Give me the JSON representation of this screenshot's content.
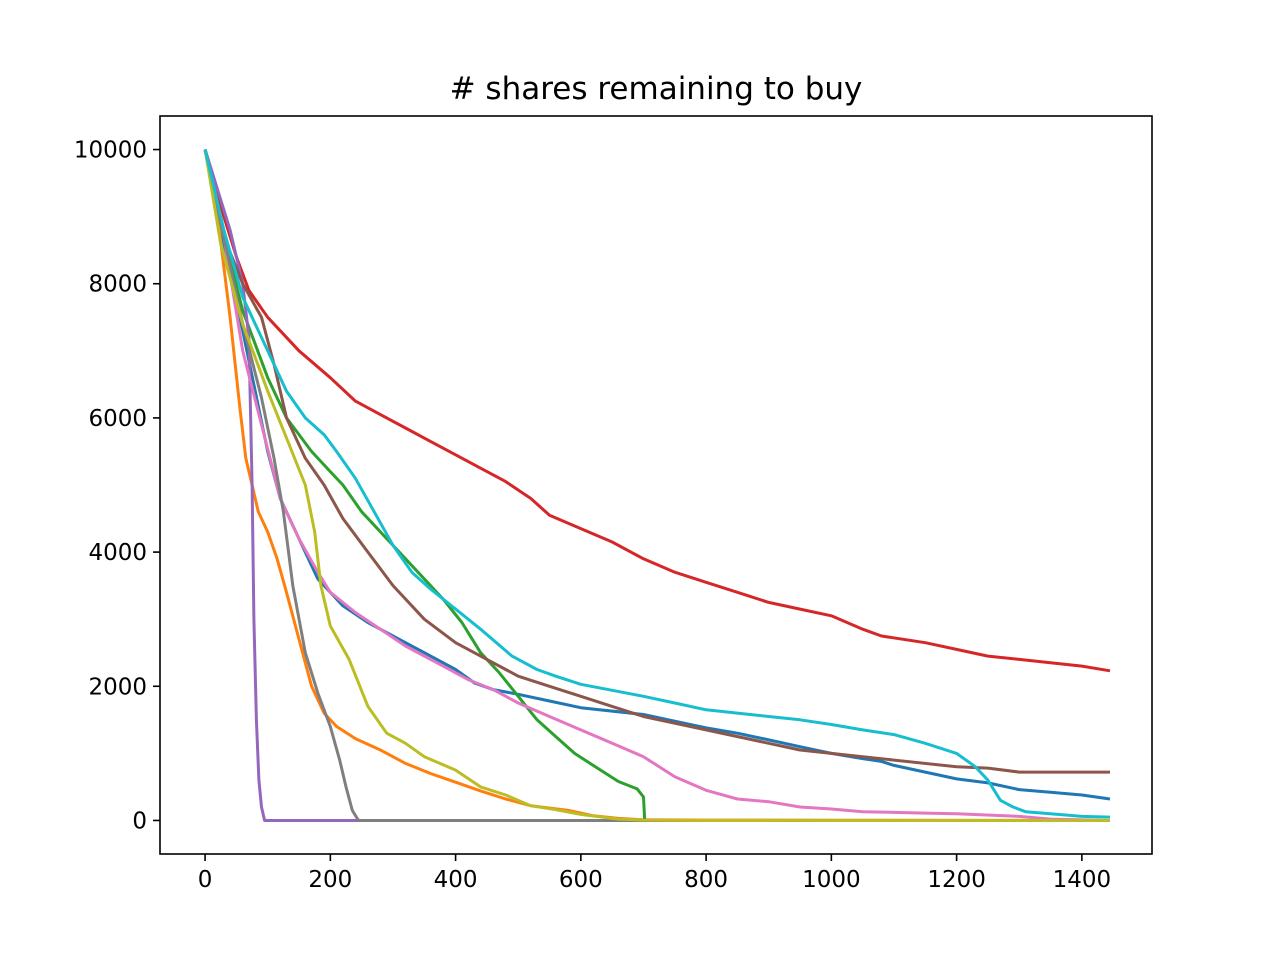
{
  "chart_data": {
    "type": "line",
    "title": "# shares remaining to buy",
    "xlabel": "",
    "ylabel": "",
    "xlim": [
      -72,
      1512
    ],
    "ylim": [
      -500,
      10500
    ],
    "xticks": [
      0,
      200,
      400,
      600,
      800,
      1000,
      1200,
      1400
    ],
    "yticks": [
      0,
      2000,
      4000,
      6000,
      8000,
      10000
    ],
    "grid": false,
    "legend": "none",
    "series": [
      {
        "color": "#1f77b4",
        "points": [
          [
            0,
            10000
          ],
          [
            30,
            8600
          ],
          [
            60,
            7300
          ],
          [
            80,
            6400
          ],
          [
            100,
            5500
          ],
          [
            120,
            4800
          ],
          [
            150,
            4200
          ],
          [
            180,
            3600
          ],
          [
            220,
            3200
          ],
          [
            260,
            2950
          ],
          [
            300,
            2750
          ],
          [
            350,
            2500
          ],
          [
            400,
            2250
          ],
          [
            430,
            2050
          ],
          [
            460,
            1950
          ],
          [
            500,
            1880
          ],
          [
            550,
            1780
          ],
          [
            600,
            1680
          ],
          [
            700,
            1580
          ],
          [
            750,
            1480
          ],
          [
            800,
            1380
          ],
          [
            850,
            1300
          ],
          [
            900,
            1200
          ],
          [
            950,
            1100
          ],
          [
            1000,
            1000
          ],
          [
            1050,
            920
          ],
          [
            1080,
            880
          ],
          [
            1100,
            820
          ],
          [
            1150,
            720
          ],
          [
            1200,
            620
          ],
          [
            1250,
            560
          ],
          [
            1300,
            460
          ],
          [
            1350,
            420
          ],
          [
            1400,
            380
          ],
          [
            1445,
            320
          ]
        ]
      },
      {
        "color": "#ff7f0e",
        "points": [
          [
            0,
            10000
          ],
          [
            20,
            9000
          ],
          [
            40,
            7500
          ],
          [
            55,
            6200
          ],
          [
            65,
            5400
          ],
          [
            75,
            5000
          ],
          [
            85,
            4600
          ],
          [
            100,
            4300
          ],
          [
            115,
            3900
          ],
          [
            130,
            3400
          ],
          [
            150,
            2700
          ],
          [
            170,
            2000
          ],
          [
            190,
            1600
          ],
          [
            210,
            1400
          ],
          [
            240,
            1220
          ],
          [
            280,
            1050
          ],
          [
            320,
            850
          ],
          [
            360,
            700
          ],
          [
            400,
            570
          ],
          [
            440,
            440
          ],
          [
            480,
            320
          ],
          [
            520,
            220
          ],
          [
            580,
            150
          ],
          [
            620,
            70
          ],
          [
            660,
            30
          ],
          [
            700,
            10
          ],
          [
            800,
            5
          ],
          [
            1445,
            0
          ]
        ]
      },
      {
        "color": "#2ca02c",
        "points": [
          [
            0,
            10000
          ],
          [
            30,
            8700
          ],
          [
            60,
            7600
          ],
          [
            100,
            6600
          ],
          [
            130,
            6000
          ],
          [
            170,
            5500
          ],
          [
            200,
            5200
          ],
          [
            220,
            5000
          ],
          [
            250,
            4600
          ],
          [
            300,
            4100
          ],
          [
            340,
            3700
          ],
          [
            380,
            3300
          ],
          [
            410,
            2950
          ],
          [
            440,
            2500
          ],
          [
            470,
            2200
          ],
          [
            500,
            1850
          ],
          [
            530,
            1500
          ],
          [
            560,
            1250
          ],
          [
            590,
            1000
          ],
          [
            630,
            760
          ],
          [
            660,
            580
          ],
          [
            690,
            470
          ],
          [
            700,
            350
          ],
          [
            702,
            0
          ],
          [
            1445,
            0
          ]
        ]
      },
      {
        "color": "#d62728",
        "points": [
          [
            0,
            10000
          ],
          [
            30,
            9000
          ],
          [
            50,
            8400
          ],
          [
            70,
            7900
          ],
          [
            100,
            7500
          ],
          [
            150,
            7000
          ],
          [
            200,
            6600
          ],
          [
            240,
            6250
          ],
          [
            280,
            6050
          ],
          [
            320,
            5850
          ],
          [
            360,
            5650
          ],
          [
            400,
            5450
          ],
          [
            440,
            5250
          ],
          [
            480,
            5050
          ],
          [
            520,
            4800
          ],
          [
            550,
            4550
          ],
          [
            600,
            4350
          ],
          [
            650,
            4150
          ],
          [
            700,
            3900
          ],
          [
            750,
            3700
          ],
          [
            800,
            3550
          ],
          [
            850,
            3400
          ],
          [
            900,
            3250
          ],
          [
            950,
            3150
          ],
          [
            1000,
            3050
          ],
          [
            1050,
            2850
          ],
          [
            1080,
            2750
          ],
          [
            1150,
            2650
          ],
          [
            1200,
            2550
          ],
          [
            1250,
            2450
          ],
          [
            1300,
            2400
          ],
          [
            1350,
            2350
          ],
          [
            1400,
            2300
          ],
          [
            1445,
            2230
          ]
        ]
      },
      {
        "color": "#9467bd",
        "points": [
          [
            0,
            10000
          ],
          [
            40,
            8800
          ],
          [
            60,
            8000
          ],
          [
            70,
            7200
          ],
          [
            75,
            5000
          ],
          [
            78,
            3000
          ],
          [
            82,
            1500
          ],
          [
            86,
            600
          ],
          [
            90,
            200
          ],
          [
            95,
            0
          ],
          [
            1445,
            0
          ]
        ]
      },
      {
        "color": "#8c564b",
        "points": [
          [
            0,
            10000
          ],
          [
            30,
            8700
          ],
          [
            60,
            8000
          ],
          [
            90,
            7500
          ],
          [
            110,
            6800
          ],
          [
            130,
            6000
          ],
          [
            160,
            5400
          ],
          [
            190,
            5000
          ],
          [
            220,
            4500
          ],
          [
            260,
            4000
          ],
          [
            300,
            3500
          ],
          [
            350,
            3000
          ],
          [
            400,
            2650
          ],
          [
            450,
            2400
          ],
          [
            500,
            2150
          ],
          [
            550,
            2000
          ],
          [
            600,
            1850
          ],
          [
            650,
            1700
          ],
          [
            700,
            1550
          ],
          [
            800,
            1350
          ],
          [
            900,
            1150
          ],
          [
            950,
            1050
          ],
          [
            1000,
            1000
          ],
          [
            1050,
            950
          ],
          [
            1100,
            900
          ],
          [
            1200,
            800
          ],
          [
            1250,
            780
          ],
          [
            1300,
            720
          ],
          [
            1350,
            720
          ],
          [
            1445,
            720
          ]
        ]
      },
      {
        "color": "#e377c2",
        "points": [
          [
            0,
            10000
          ],
          [
            30,
            8700
          ],
          [
            60,
            7000
          ],
          [
            90,
            5900
          ],
          [
            120,
            4800
          ],
          [
            150,
            4200
          ],
          [
            180,
            3700
          ],
          [
            200,
            3400
          ],
          [
            240,
            3100
          ],
          [
            280,
            2850
          ],
          [
            320,
            2600
          ],
          [
            380,
            2300
          ],
          [
            420,
            2100
          ],
          [
            460,
            1950
          ],
          [
            500,
            1750
          ],
          [
            550,
            1550
          ],
          [
            600,
            1350
          ],
          [
            650,
            1150
          ],
          [
            700,
            950
          ],
          [
            750,
            650
          ],
          [
            800,
            450
          ],
          [
            850,
            320
          ],
          [
            900,
            280
          ],
          [
            950,
            200
          ],
          [
            1000,
            170
          ],
          [
            1050,
            130
          ],
          [
            1100,
            120
          ],
          [
            1150,
            110
          ],
          [
            1200,
            100
          ],
          [
            1300,
            60
          ],
          [
            1350,
            20
          ],
          [
            1445,
            0
          ]
        ]
      },
      {
        "color": "#7f7f7f",
        "points": [
          [
            0,
            10000
          ],
          [
            30,
            8700
          ],
          [
            60,
            7400
          ],
          [
            90,
            6300
          ],
          [
            110,
            5400
          ],
          [
            125,
            4600
          ],
          [
            140,
            3500
          ],
          [
            160,
            2500
          ],
          [
            180,
            1900
          ],
          [
            200,
            1400
          ],
          [
            215,
            900
          ],
          [
            225,
            500
          ],
          [
            235,
            150
          ],
          [
            245,
            0
          ],
          [
            1445,
            0
          ]
        ]
      },
      {
        "color": "#bcbd22",
        "points": [
          [
            0,
            10000
          ],
          [
            25,
            8600
          ],
          [
            60,
            7400
          ],
          [
            100,
            6400
          ],
          [
            130,
            5700
          ],
          [
            160,
            5000
          ],
          [
            175,
            4300
          ],
          [
            185,
            3500
          ],
          [
            200,
            2900
          ],
          [
            230,
            2400
          ],
          [
            260,
            1700
          ],
          [
            290,
            1300
          ],
          [
            320,
            1150
          ],
          [
            350,
            950
          ],
          [
            400,
            750
          ],
          [
            440,
            500
          ],
          [
            480,
            380
          ],
          [
            520,
            220
          ],
          [
            560,
            160
          ],
          [
            600,
            90
          ],
          [
            660,
            20
          ],
          [
            700,
            5
          ],
          [
            800,
            0
          ],
          [
            1445,
            0
          ]
        ]
      },
      {
        "color": "#17becf",
        "points": [
          [
            0,
            10000
          ],
          [
            30,
            8800
          ],
          [
            60,
            7800
          ],
          [
            100,
            7000
          ],
          [
            130,
            6400
          ],
          [
            160,
            6000
          ],
          [
            190,
            5750
          ],
          [
            210,
            5500
          ],
          [
            240,
            5100
          ],
          [
            270,
            4600
          ],
          [
            300,
            4100
          ],
          [
            330,
            3700
          ],
          [
            360,
            3450
          ],
          [
            400,
            3150
          ],
          [
            440,
            2850
          ],
          [
            490,
            2450
          ],
          [
            530,
            2250
          ],
          [
            560,
            2150
          ],
          [
            600,
            2030
          ],
          [
            650,
            1940
          ],
          [
            700,
            1850
          ],
          [
            750,
            1750
          ],
          [
            800,
            1650
          ],
          [
            850,
            1600
          ],
          [
            900,
            1550
          ],
          [
            950,
            1500
          ],
          [
            1000,
            1430
          ],
          [
            1050,
            1350
          ],
          [
            1100,
            1280
          ],
          [
            1150,
            1150
          ],
          [
            1200,
            1000
          ],
          [
            1230,
            800
          ],
          [
            1250,
            600
          ],
          [
            1270,
            300
          ],
          [
            1290,
            200
          ],
          [
            1310,
            130
          ],
          [
            1350,
            100
          ],
          [
            1400,
            60
          ],
          [
            1445,
            50
          ]
        ]
      }
    ]
  }
}
